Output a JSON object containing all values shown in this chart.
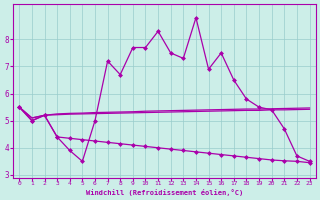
{
  "xlabel": "Windchill (Refroidissement éolien,°C)",
  "x_values": [
    0,
    1,
    2,
    3,
    4,
    5,
    6,
    7,
    8,
    9,
    10,
    11,
    12,
    13,
    14,
    15,
    16,
    17,
    18,
    19,
    20,
    21,
    22,
    23
  ],
  "line_wiggly": [
    5.5,
    5.0,
    5.2,
    4.4,
    3.9,
    3.5,
    5.0,
    7.2,
    6.7,
    7.7,
    7.7,
    8.3,
    7.5,
    7.3,
    8.8,
    6.9,
    7.5,
    6.5,
    5.8,
    5.5,
    5.4,
    4.7,
    3.7,
    3.5
  ],
  "line_flat1": [
    5.5,
    5.1,
    5.2,
    5.22,
    5.24,
    5.25,
    5.26,
    5.27,
    5.28,
    5.29,
    5.3,
    5.31,
    5.32,
    5.33,
    5.34,
    5.35,
    5.36,
    5.37,
    5.38,
    5.38,
    5.4,
    5.4,
    5.41,
    5.42
  ],
  "line_flat2": [
    5.5,
    5.1,
    5.2,
    5.25,
    5.27,
    5.28,
    5.3,
    5.31,
    5.32,
    5.33,
    5.35,
    5.36,
    5.37,
    5.38,
    5.39,
    5.4,
    5.41,
    5.42,
    5.43,
    5.43,
    5.44,
    5.45,
    5.46,
    5.47
  ],
  "line_decline": [
    5.5,
    5.0,
    5.2,
    4.4,
    4.35,
    4.3,
    4.25,
    4.2,
    4.15,
    4.1,
    4.05,
    4.0,
    3.95,
    3.9,
    3.85,
    3.8,
    3.75,
    3.7,
    3.65,
    3.6,
    3.55,
    3.52,
    3.5,
    3.45
  ],
  "bg_color": "#cceee8",
  "line_color": "#aa00aa",
  "grid_color": "#99cccc",
  "ylim": [
    2.9,
    9.3
  ],
  "yticks": [
    3,
    4,
    5,
    6,
    7,
    8
  ],
  "markersize": 2.5
}
